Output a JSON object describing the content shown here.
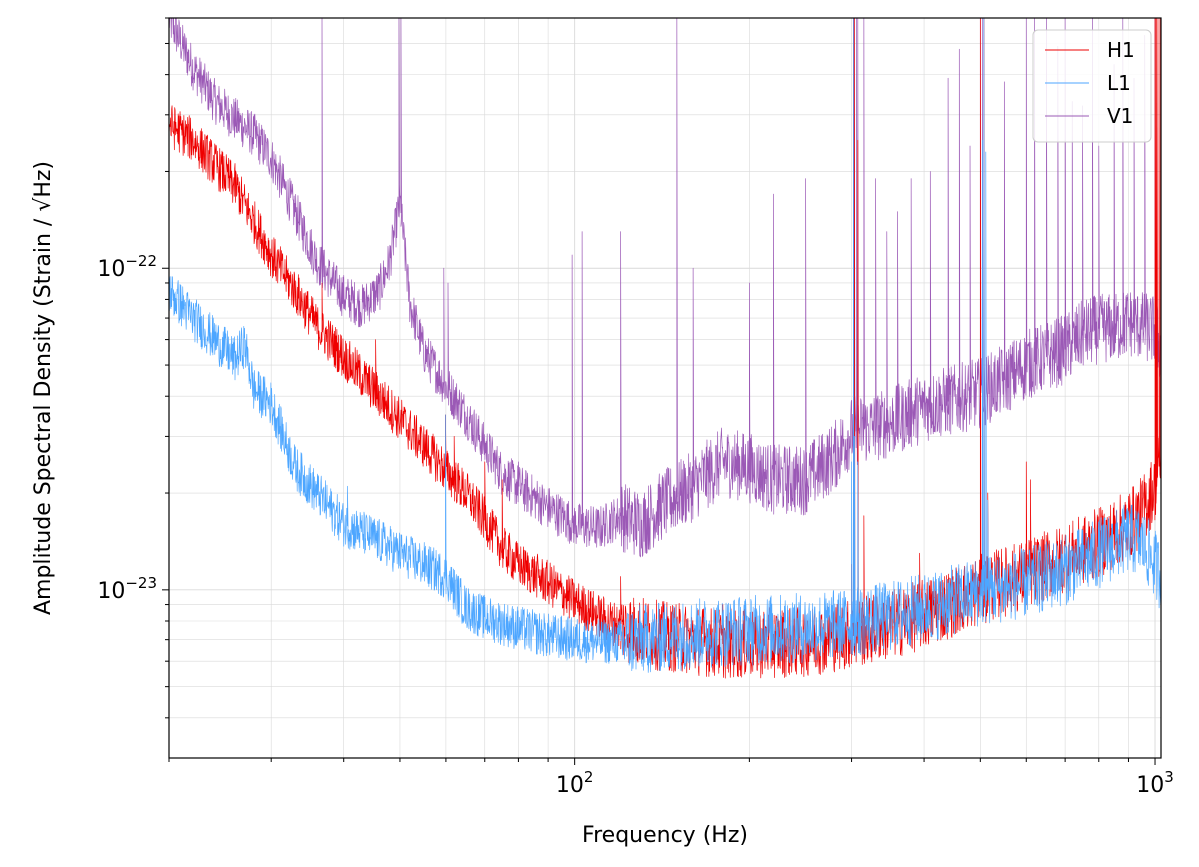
{
  "chart_data": {
    "type": "line",
    "xlabel": "Frequency (Hz)",
    "ylabel": "Amplitude Spectral Density (Strain / √Hz)",
    "xscale": "log",
    "yscale": "log",
    "xlim": [
      20,
      1024
    ],
    "ylim": [
      3e-24,
      6e-22
    ],
    "x_ticks": [
      {
        "value": 100,
        "base": "10",
        "exp": "2"
      },
      {
        "value": 1000,
        "base": "10",
        "exp": "3"
      }
    ],
    "y_ticks": [
      {
        "value": 1e-22,
        "base": "10",
        "exp": "−22"
      },
      {
        "value": 1e-23,
        "base": "10",
        "exp": "−23"
      }
    ],
    "grid": true,
    "legend_position": "top-right",
    "series": [
      {
        "name": "H1",
        "color": "#ee0000",
        "points": [
          [
            20,
            2.8e-22
          ],
          [
            22,
            2.5e-22
          ],
          [
            24,
            2.1e-22
          ],
          [
            26,
            1.8e-22
          ],
          [
            28,
            1.4e-22
          ],
          [
            30,
            1.1e-22
          ],
          [
            33,
            8.5e-23
          ],
          [
            36,
            6.6e-23
          ],
          [
            40,
            5.3e-23
          ],
          [
            45,
            4.2e-23
          ],
          [
            50,
            3.4e-23
          ],
          [
            55,
            2.8e-23
          ],
          [
            60,
            2.35e-23
          ],
          [
            65,
            2e-23
          ],
          [
            70,
            1.65e-23
          ],
          [
            75,
            1.35e-23
          ],
          [
            80,
            1.2e-23
          ],
          [
            90,
            1.05e-23
          ],
          [
            100,
            9.2e-24
          ],
          [
            110,
            8.3e-24
          ],
          [
            120,
            7.7e-24
          ],
          [
            140,
            7.2e-24
          ],
          [
            160,
            7e-24
          ],
          [
            180,
            6.8e-24
          ],
          [
            200,
            6.8e-24
          ],
          [
            250,
            6.9e-24
          ],
          [
            300,
            7.3e-24
          ],
          [
            350,
            7.8e-24
          ],
          [
            400,
            8.4e-24
          ],
          [
            450,
            9.2e-24
          ],
          [
            500,
            1e-23
          ],
          [
            600,
            1.12e-23
          ],
          [
            700,
            1.25e-23
          ],
          [
            800,
            1.4e-23
          ],
          [
            900,
            1.6e-23
          ],
          [
            950,
            1.75e-23
          ],
          [
            1000,
            2.1e-23
          ],
          [
            1024,
            2.6e-23
          ]
        ],
        "spikes": [
          [
            36.7,
            9e-23
          ],
          [
            45.4,
            6e-23
          ],
          [
            59.9,
            3.5e-23
          ],
          [
            62,
            3e-23
          ],
          [
            70,
            2.5e-23
          ],
          [
            75,
            2.2e-23
          ],
          [
            120,
            1.1e-23
          ],
          [
            180,
            9e-24
          ],
          [
            300,
            1.2e-23
          ],
          [
            302.2,
            6e-22
          ],
          [
            303.3,
            6e-22
          ],
          [
            307.5,
            2.5e-22
          ],
          [
            315,
            1.7e-23
          ],
          [
            393,
            1.3e-23
          ],
          [
            500,
            6e-22
          ],
          [
            507,
            6e-22
          ],
          [
            515,
            2e-23
          ],
          [
            600,
            2.5e-23
          ],
          [
            610,
            2.2e-23
          ],
          [
            1000,
            6e-22
          ],
          [
            1004,
            6e-22
          ],
          [
            1008,
            6e-22
          ],
          [
            1016,
            6e-22
          ],
          [
            1022,
            6e-22
          ]
        ]
      },
      {
        "name": "L1",
        "color": "#4da6ff",
        "points": [
          [
            20,
            8.5e-23
          ],
          [
            22,
            7e-23
          ],
          [
            24,
            6e-23
          ],
          [
            26,
            5.2e-23
          ],
          [
            27,
            5.8e-23
          ],
          [
            28,
            4.2e-23
          ],
          [
            30,
            3.8e-23
          ],
          [
            33,
            2.4e-23
          ],
          [
            36,
            2e-23
          ],
          [
            40,
            1.6e-23
          ],
          [
            45,
            1.45e-23
          ],
          [
            50,
            1.3e-23
          ],
          [
            55,
            1.2e-23
          ],
          [
            60,
            1.1e-23
          ],
          [
            65,
            8.8e-24
          ],
          [
            70,
            8.2e-24
          ],
          [
            80,
            7.6e-24
          ],
          [
            90,
            7.2e-24
          ],
          [
            100,
            7e-24
          ],
          [
            110,
            6.9e-24
          ],
          [
            120,
            6.9e-24
          ],
          [
            140,
            7.1e-24
          ],
          [
            160,
            7.3e-24
          ],
          [
            200,
            7.5e-24
          ],
          [
            250,
            7.6e-24
          ],
          [
            300,
            7.9e-24
          ],
          [
            350,
            8.3e-24
          ],
          [
            400,
            8.8e-24
          ],
          [
            450,
            9.3e-24
          ],
          [
            500,
            9.9e-24
          ],
          [
            600,
            1.05e-23
          ],
          [
            700,
            1.15e-23
          ],
          [
            800,
            1.3e-23
          ],
          [
            900,
            1.45e-23
          ],
          [
            950,
            1.4e-23
          ],
          [
            1000,
            1.2e-23
          ],
          [
            1024,
            1.1e-23
          ]
        ],
        "spikes": [
          [
            30,
            3.8e-23
          ],
          [
            40.6,
            2.1e-23
          ],
          [
            45.5,
            1.5e-23
          ],
          [
            59.9,
            3.5e-23
          ],
          [
            300,
            2.5e-23
          ],
          [
            302.2,
            6e-22
          ],
          [
            303.5,
            3e-23
          ],
          [
            307.5,
            2.5e-23
          ],
          [
            504,
            2.5e-22
          ],
          [
            507,
            6e-22
          ],
          [
            511,
            2.3e-22
          ],
          [
            515,
            1.9e-23
          ]
        ]
      },
      {
        "name": "V1",
        "color": "#9b59b6",
        "points": [
          [
            20,
            6e-22
          ],
          [
            22,
            4.2e-22
          ],
          [
            24,
            3.3e-22
          ],
          [
            26,
            2.9e-22
          ],
          [
            28,
            2.6e-22
          ],
          [
            30,
            2.2e-22
          ],
          [
            33,
            1.5e-22
          ],
          [
            36,
            1.05e-22
          ],
          [
            40,
            8.2e-23
          ],
          [
            43,
            7.6e-23
          ],
          [
            46,
            8.5e-23
          ],
          [
            48,
            1.05e-22
          ],
          [
            50,
            1.6e-22
          ],
          [
            52,
            7.8e-23
          ],
          [
            55,
            5.5e-23
          ],
          [
            60,
            4.3e-23
          ],
          [
            65,
            3.5e-23
          ],
          [
            70,
            2.8e-23
          ],
          [
            75,
            2.3e-23
          ],
          [
            80,
            2.1e-23
          ],
          [
            90,
            1.8e-23
          ],
          [
            100,
            1.6e-23
          ],
          [
            110,
            1.55e-23
          ],
          [
            120,
            1.7e-23
          ],
          [
            130,
            1.6e-23
          ],
          [
            140,
            1.8e-23
          ],
          [
            160,
            2.1e-23
          ],
          [
            180,
            2.5e-23
          ],
          [
            200,
            2.4e-23
          ],
          [
            220,
            2.2e-23
          ],
          [
            250,
            2.2e-23
          ],
          [
            280,
            2.6e-23
          ],
          [
            300,
            3.1e-23
          ],
          [
            350,
            3.3e-23
          ],
          [
            400,
            3.7e-23
          ],
          [
            450,
            3.9e-23
          ],
          [
            500,
            4.1e-23
          ],
          [
            550,
            4.5e-23
          ],
          [
            600,
            5e-23
          ],
          [
            650,
            5.3e-23
          ],
          [
            700,
            5.6e-23
          ],
          [
            750,
            6.2e-23
          ],
          [
            800,
            6.5e-23
          ],
          [
            850,
            6.5e-23
          ],
          [
            900,
            6.8e-23
          ],
          [
            950,
            6.6e-23
          ],
          [
            1000,
            6.4e-23
          ],
          [
            1024,
            5.5e-23
          ]
        ],
        "spikes": [
          [
            36.7,
            6e-22
          ],
          [
            49.8,
            6e-22
          ],
          [
            50.2,
            6e-22
          ],
          [
            59.5,
            1e-22
          ],
          [
            60.5,
            9e-23
          ],
          [
            80,
            2.5e-23
          ],
          [
            99,
            1.1e-22
          ],
          [
            103,
            1.3e-22
          ],
          [
            120,
            1.3e-22
          ],
          [
            150,
            6e-22
          ],
          [
            160,
            1e-22
          ],
          [
            200,
            9e-23
          ],
          [
            220,
            1.7e-22
          ],
          [
            250,
            1.9e-22
          ],
          [
            302.5,
            6e-22
          ],
          [
            303.3,
            6e-22
          ],
          [
            306,
            6e-22
          ],
          [
            307.5,
            6e-22
          ],
          [
            315,
            6e-22
          ],
          [
            330,
            1.9e-22
          ],
          [
            345,
            1.3e-22
          ],
          [
            360,
            1.5e-22
          ],
          [
            380,
            1.9e-22
          ],
          [
            410,
            2e-22
          ],
          [
            440,
            3.9e-22
          ],
          [
            460,
            4.8e-22
          ],
          [
            480,
            2.4e-22
          ],
          [
            500,
            6e-22
          ],
          [
            504,
            6e-22
          ],
          [
            507,
            6e-22
          ],
          [
            550,
            3.8e-22
          ],
          [
            600,
            6e-22
          ],
          [
            620,
            6e-22
          ],
          [
            650,
            6e-22
          ],
          [
            680,
            4.9e-22
          ],
          [
            700,
            6e-22
          ],
          [
            720,
            3.3e-22
          ],
          [
            750,
            3.2e-22
          ],
          [
            780,
            6e-22
          ],
          [
            800,
            2.4e-22
          ],
          [
            850,
            4.3e-22
          ],
          [
            880,
            6e-22
          ],
          [
            920,
            3.9e-22
          ],
          [
            960,
            5.3e-22
          ],
          [
            1000,
            6e-22
          ]
        ]
      }
    ]
  }
}
